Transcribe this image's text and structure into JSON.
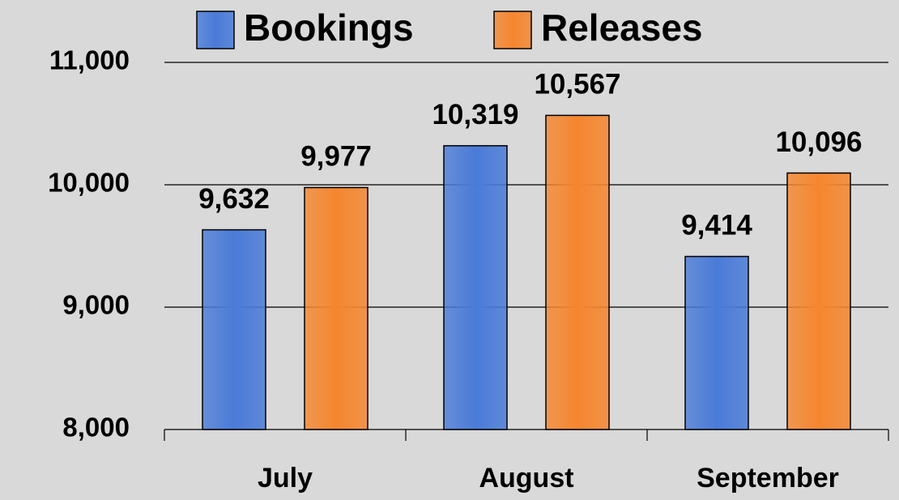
{
  "chart_data": {
    "type": "bar",
    "categories": [
      "July",
      "August",
      "September"
    ],
    "series": [
      {
        "name": "Bookings",
        "color": "#4a7bd8",
        "values": [
          9632,
          10319,
          9414
        ],
        "value_labels": [
          "9,632",
          "10,319",
          "9,414"
        ]
      },
      {
        "name": "Releases",
        "color": "#f5862f",
        "values": [
          9977,
          10567,
          10096
        ],
        "value_labels": [
          "9,977",
          "10,567",
          "10,096"
        ]
      }
    ],
    "ylim": [
      8000,
      11000
    ],
    "yticks": [
      {
        "value": 8000,
        "label": "8,000"
      },
      {
        "value": 9000,
        "label": "9,000"
      },
      {
        "value": 10000,
        "label": "10,000"
      },
      {
        "value": 11000,
        "label": "11,000"
      }
    ],
    "grid": true,
    "legend": "top"
  }
}
